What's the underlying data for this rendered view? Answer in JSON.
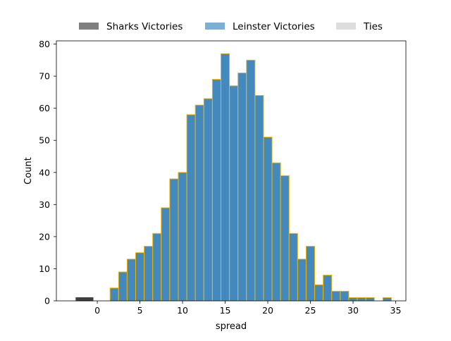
{
  "chart_data": {
    "type": "bar",
    "xlabel": "spread",
    "ylabel": "Count",
    "xlim": [
      -4.8,
      36.2
    ],
    "ylim": [
      0,
      81
    ],
    "x_ticks": [
      0,
      5,
      10,
      15,
      20,
      25,
      30,
      35
    ],
    "y_ticks": [
      0,
      10,
      20,
      30,
      40,
      50,
      60,
      70,
      80
    ],
    "bin_width": 1,
    "grid": false,
    "legend": {
      "placement": "top-center",
      "entries": [
        {
          "label": "Sharks Victories",
          "color": "#7f7f7f"
        },
        {
          "label": "Leinster Victories",
          "color": "#7bafd4"
        },
        {
          "label": "Ties",
          "color": "#dddddd"
        }
      ]
    },
    "series": [
      {
        "name": "Sharks Victories",
        "color": "#404040",
        "edge_color": "#404040",
        "bins": [
          {
            "start": -2.5,
            "count": 1
          },
          {
            "start": -1.5,
            "count": 1
          }
        ]
      },
      {
        "name": "Leinster Victories",
        "color": "#4489be",
        "edge_color": "#f0b400",
        "bins": [
          {
            "start": 1.5,
            "count": 4
          },
          {
            "start": 2.5,
            "count": 9
          },
          {
            "start": 3.5,
            "count": 13
          },
          {
            "start": 4.5,
            "count": 15
          },
          {
            "start": 5.5,
            "count": 17
          },
          {
            "start": 6.5,
            "count": 21
          },
          {
            "start": 7.5,
            "count": 29
          },
          {
            "start": 8.5,
            "count": 38
          },
          {
            "start": 9.5,
            "count": 40
          },
          {
            "start": 10.5,
            "count": 58
          },
          {
            "start": 11.5,
            "count": 61
          },
          {
            "start": 12.5,
            "count": 63
          },
          {
            "start": 13.5,
            "count": 69
          },
          {
            "start": 14.5,
            "count": 77
          },
          {
            "start": 15.5,
            "count": 67
          },
          {
            "start": 16.5,
            "count": 71
          },
          {
            "start": 17.5,
            "count": 75
          },
          {
            "start": 18.5,
            "count": 64
          },
          {
            "start": 19.5,
            "count": 51
          },
          {
            "start": 20.5,
            "count": 43
          },
          {
            "start": 21.5,
            "count": 39
          },
          {
            "start": 22.5,
            "count": 21
          },
          {
            "start": 23.5,
            "count": 13
          },
          {
            "start": 24.5,
            "count": 17
          },
          {
            "start": 25.5,
            "count": 5
          },
          {
            "start": 26.5,
            "count": 8
          },
          {
            "start": 27.5,
            "count": 3
          },
          {
            "start": 28.5,
            "count": 3
          },
          {
            "start": 29.5,
            "count": 1
          },
          {
            "start": 30.5,
            "count": 1
          },
          {
            "start": 31.5,
            "count": 1
          },
          {
            "start": 33.5,
            "count": 1
          }
        ]
      },
      {
        "name": "Ties",
        "color": "#dddddd",
        "edge_color": "#dddddd",
        "bins": []
      }
    ]
  }
}
